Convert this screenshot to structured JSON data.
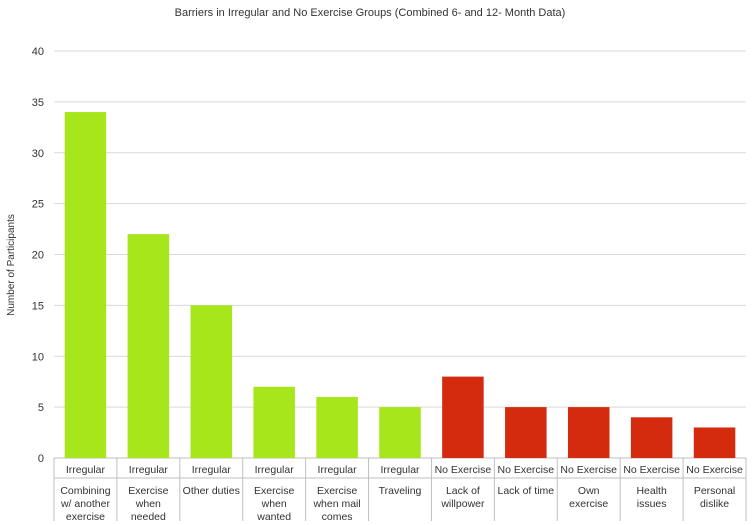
{
  "chart_data": {
    "type": "bar",
    "title": "Barriers in Irregular and No Exercise Groups (Combined 6- and 12- Month Data)",
    "xlabel": "",
    "ylabel": "Number of Participants",
    "ylim": [
      0,
      40
    ],
    "yticks": [
      0,
      5,
      10,
      15,
      20,
      25,
      30,
      35,
      40
    ],
    "grid": true,
    "legend": "none",
    "colors": {
      "Irregular": "#a6e61a",
      "No Exercise": "#d42b0e"
    },
    "categories": [
      {
        "group": "Irregular",
        "label": [
          "Combining",
          "w/ another",
          "exercise"
        ]
      },
      {
        "group": "Irregular",
        "label": [
          "Exercise",
          "when",
          "needed"
        ]
      },
      {
        "group": "Irregular",
        "label": [
          "Other duties"
        ]
      },
      {
        "group": "Irregular",
        "label": [
          "Exercise",
          "when",
          "wanted"
        ]
      },
      {
        "group": "Irregular",
        "label": [
          "Exercise",
          "when mail",
          "comes"
        ]
      },
      {
        "group": "Irregular",
        "label": [
          "Traveling"
        ]
      },
      {
        "group": "No Exercise",
        "label": [
          "Lack of",
          "willpower"
        ]
      },
      {
        "group": "No Exercise",
        "label": [
          "Lack of time"
        ]
      },
      {
        "group": "No Exercise",
        "label": [
          "Own",
          "exercise"
        ]
      },
      {
        "group": "No Exercise",
        "label": [
          "Health",
          "issues"
        ]
      },
      {
        "group": "No Exercise",
        "label": [
          "Personal",
          "dislike"
        ]
      }
    ],
    "values": [
      34,
      22,
      15,
      7,
      6,
      5,
      8,
      5,
      5,
      4,
      3
    ]
  }
}
